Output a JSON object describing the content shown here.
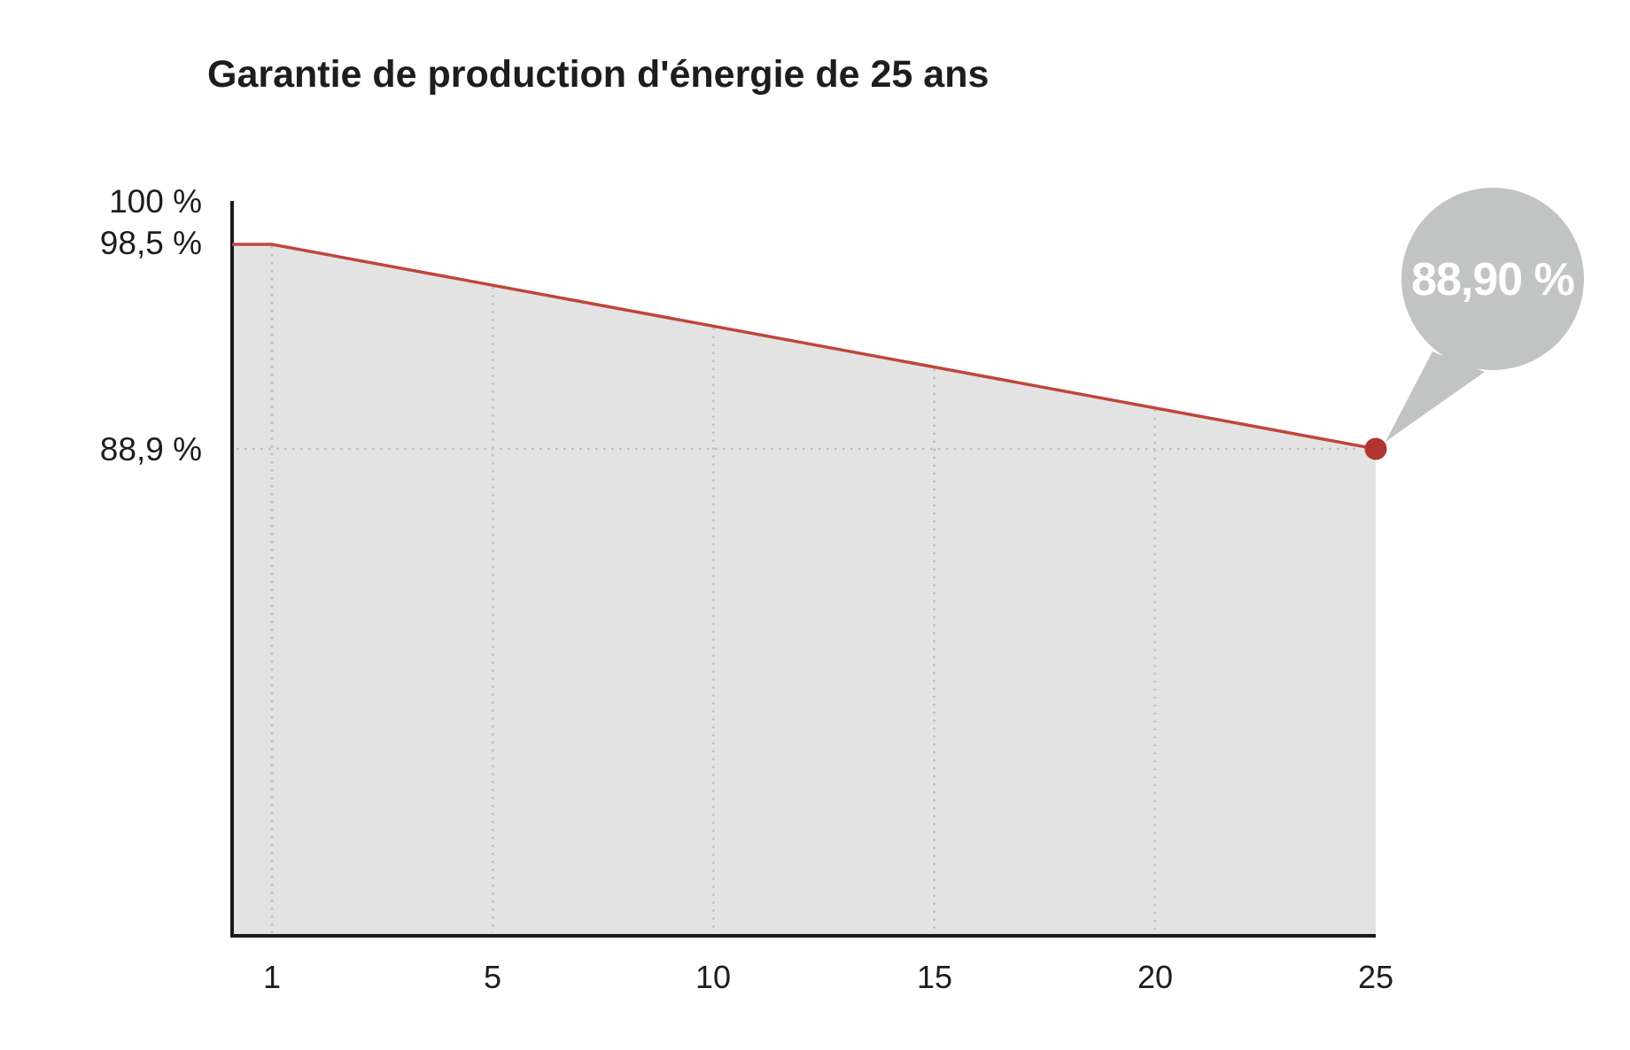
{
  "chart_data": {
    "type": "area",
    "title": "Garantie de production d'énergie de 25 ans",
    "points": [
      {
        "year": 0,
        "value": 98.5
      },
      {
        "year": 1,
        "value": 98.5
      },
      {
        "year": 25,
        "value": 88.9
      }
    ],
    "x_tick_years": [
      1,
      5,
      10,
      15,
      20,
      25
    ],
    "x_ticks": [
      "1",
      "5",
      "10",
      "15",
      "20",
      "25"
    ],
    "y_tick_labels": [
      "100 %",
      "98,5 %",
      "88,9 %"
    ],
    "guarantee_value": 88.9,
    "ylim_top": 100,
    "grid": "dotted vertical lines at each x tick; dotted horizontal line at 88.9 %",
    "legend": "none",
    "annotation": {
      "label": "88,90 %",
      "year": 25,
      "value": 88.9
    },
    "colors": {
      "line": "#c0453d",
      "end_dot": "#b23431",
      "area_fill": "#e3e3e3",
      "callout_bubble": "#c2c4c4",
      "callout_text": "#ffffff",
      "gridline": "#bdbdbd",
      "axis": "#1a1a1a",
      "text": "#1d1d1b"
    }
  }
}
